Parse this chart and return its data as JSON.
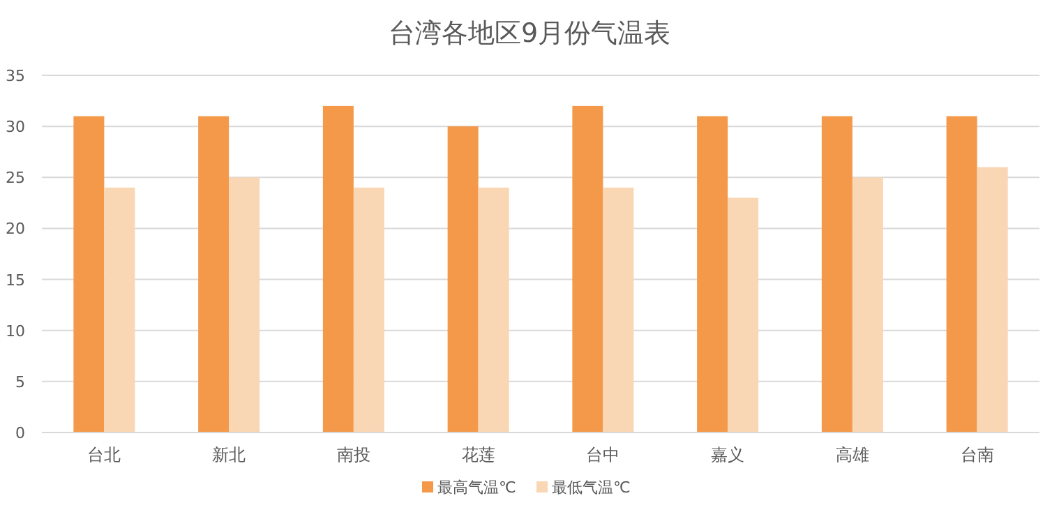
{
  "chart_data": {
    "type": "bar",
    "title": "台湾各地区9月份气温表",
    "categories": [
      "台北",
      "新北",
      "南投",
      "花莲",
      "台中",
      "嘉义",
      "高雄",
      "台南"
    ],
    "series": [
      {
        "name": "最高气温℃",
        "color": "#f4994a",
        "values": [
          31,
          31,
          32,
          30,
          32,
          31,
          31,
          31
        ]
      },
      {
        "name": "最低气温℃",
        "color": "#f9d6b4",
        "values": [
          24,
          25,
          24,
          24,
          24,
          23,
          25,
          26
        ]
      }
    ],
    "ylim": [
      0,
      35
    ],
    "yticks": [
      0,
      5,
      10,
      15,
      20,
      25,
      30,
      35
    ],
    "grid": "y",
    "legend": "bottom"
  }
}
